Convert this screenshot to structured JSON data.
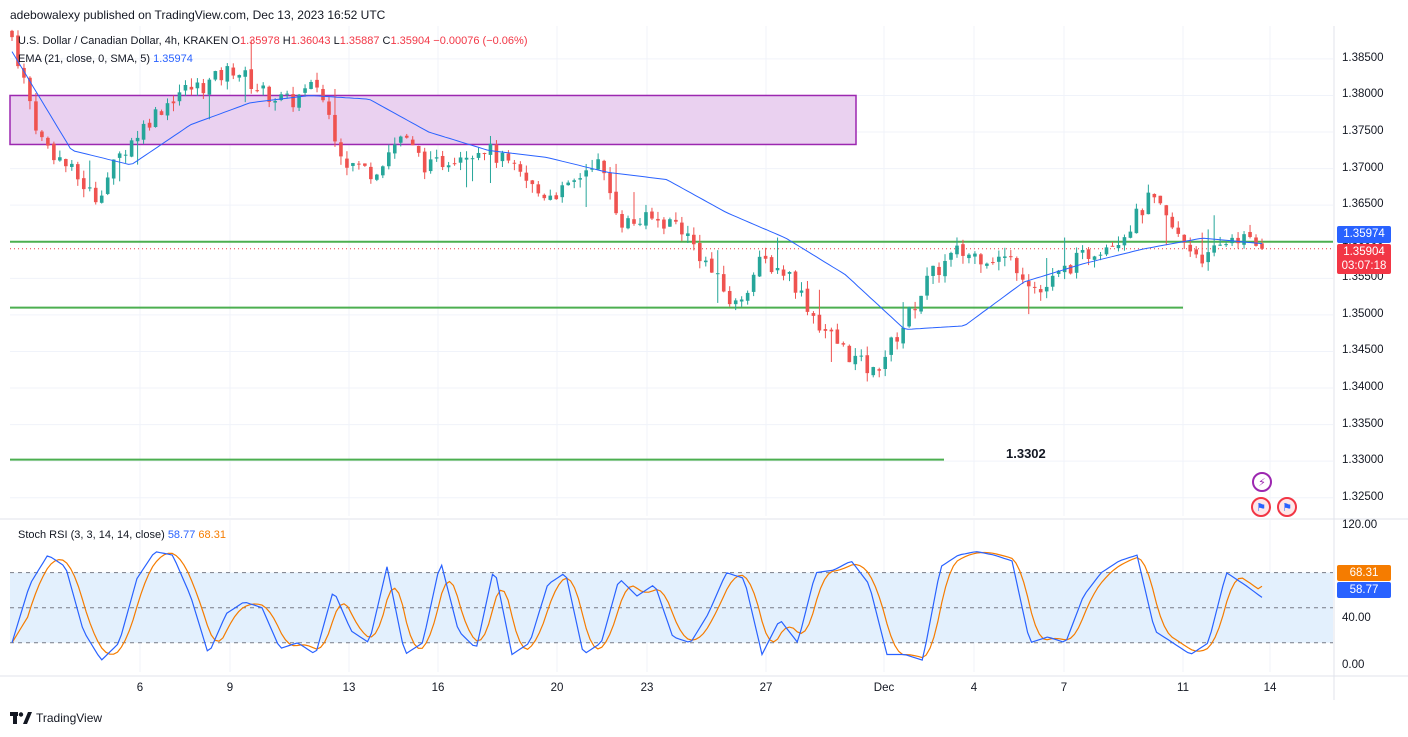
{
  "header": {
    "publisher_text": "adebowalexy published on TradingView.com, Dec 13, 2023 16:52 UTC"
  },
  "legend": {
    "symbol": "U.S. Dollar / Canadian Dollar, 4h, KRAKEN",
    "o_label": "O",
    "o_value": "1.35978",
    "h_label": "H",
    "h_value": "1.36043",
    "l_label": "L",
    "l_value": "1.35887",
    "c_label": "C",
    "c_value": "1.35904",
    "change": "−0.00076 (−0.06%)",
    "ema_label": "EMA (21, close, 0, SMA, 5)",
    "ema_value": "1.35974",
    "stoch_label": "Stoch RSI (3, 3, 14, 14, close)",
    "stoch_k": "58.77",
    "stoch_d": "68.31"
  },
  "price_axis": [
    "1.38500",
    "1.38000",
    "1.37500",
    "1.37000",
    "1.36500",
    "1.36000",
    "1.35500",
    "1.35000",
    "1.34500",
    "1.34000",
    "1.33500",
    "1.33000",
    "1.32500"
  ],
  "stoch_axis": [
    "120.00",
    "40.00",
    "0.00"
  ],
  "time_axis": [
    "6",
    "9",
    "13",
    "16",
    "20",
    "23",
    "27",
    "Dec",
    "4",
    "7",
    "11",
    "14"
  ],
  "tags": {
    "ema_price": "1.35974",
    "last_price": "1.35904",
    "countdown": "03:07:18",
    "stoch_d": "68.31",
    "stoch_k": "58.77"
  },
  "annotation": "1.3302",
  "footer": {
    "brand": "TradingView"
  },
  "colors": {
    "up": "#26a69a",
    "down": "#ef5350",
    "ema": "#2962ff",
    "zone_fill": "#ead1f0",
    "zone_border": "#9c27b0",
    "hline": "#4caf50",
    "stoch_k": "#2962ff",
    "stoch_d": "#f57c00",
    "stoch_band": "#e3f0fd"
  },
  "chart_data": [
    {
      "type": "candlestick",
      "title": "U.S. Dollar / Canadian Dollar, 4h, KRAKEN",
      "timeframe": "4h",
      "x_ticks": [
        "6",
        "9",
        "13",
        "16",
        "20",
        "23",
        "27",
        "Dec",
        "4",
        "7",
        "11",
        "14"
      ],
      "ylim": [
        1.3225,
        1.3895
      ],
      "close_path": [
        {
          "t": "Dec 1 (start)",
          "p": 1.388
        },
        {
          "t": "Dec 3",
          "p": 1.3742
        },
        {
          "t": "Nov 5",
          "p": 1.3702
        },
        {
          "t": "Nov 6",
          "p": 1.366
        },
        {
          "t": "Nov 7",
          "p": 1.3725
        },
        {
          "t": "Nov 8",
          "p": 1.377
        },
        {
          "t": "Nov 9",
          "p": 1.3805
        },
        {
          "t": "Nov 10",
          "p": 1.3815
        },
        {
          "t": "Nov 10b",
          "p": 1.3838
        },
        {
          "t": "Nov 12",
          "p": 1.3805
        },
        {
          "t": "Nov 13",
          "p": 1.379
        },
        {
          "t": "Nov 14",
          "p": 1.3815
        },
        {
          "t": "Nov 14b",
          "p": 1.371
        },
        {
          "t": "Nov 15",
          "p": 1.3695
        },
        {
          "t": "Nov 16",
          "p": 1.3745
        },
        {
          "t": "Nov 17",
          "p": 1.37
        },
        {
          "t": "Nov 19",
          "p": 1.372
        },
        {
          "t": "Nov 20",
          "p": 1.373
        },
        {
          "t": "Nov 21",
          "p": 1.37
        },
        {
          "t": "Nov 22",
          "p": 1.3665
        },
        {
          "t": "Nov 23",
          "p": 1.367
        },
        {
          "t": "Nov 24",
          "p": 1.3715
        },
        {
          "t": "Nov 24b",
          "p": 1.3625
        },
        {
          "t": "Nov 26",
          "p": 1.363
        },
        {
          "t": "Nov 27",
          "p": 1.3625
        },
        {
          "t": "Nov 28",
          "p": 1.357
        },
        {
          "t": "Nov 28b",
          "p": 1.351
        },
        {
          "t": "Nov 29",
          "p": 1.3575
        },
        {
          "t": "Nov 30",
          "p": 1.3555
        },
        {
          "t": "Dec 1",
          "p": 1.349
        },
        {
          "t": "Dec 3",
          "p": 1.345
        },
        {
          "t": "Dec 3b",
          "p": 1.342
        },
        {
          "t": "Dec 4",
          "p": 1.348
        },
        {
          "t": "Dec 5",
          "p": 1.355
        },
        {
          "t": "Dec 5b",
          "p": 1.3585
        },
        {
          "t": "Dec 6",
          "p": 1.358
        },
        {
          "t": "Dec 7",
          "p": 1.3575
        },
        {
          "t": "Dec 7b",
          "p": 1.353
        },
        {
          "t": "Dec 8",
          "p": 1.3565
        },
        {
          "t": "Dec 8b",
          "p": 1.359
        },
        {
          "t": "Dec 10",
          "p": 1.361
        },
        {
          "t": "Dec 10b",
          "p": 1.366
        },
        {
          "t": "Dec 11",
          "p": 1.3605
        },
        {
          "t": "Dec 12",
          "p": 1.3575
        },
        {
          "t": "Dec 12b",
          "p": 1.361
        },
        {
          "t": "Dec 13",
          "p": 1.35904
        }
      ],
      "ema_path": [
        {
          "t": "Dec 1 (start)",
          "v": 1.386
        },
        {
          "t": "Nov 6",
          "v": 1.3725
        },
        {
          "t": "Nov 7",
          "v": 1.3705
        },
        {
          "t": "Nov 9",
          "v": 1.376
        },
        {
          "t": "Nov 10",
          "v": 1.379
        },
        {
          "t": "Nov 13",
          "v": 1.38
        },
        {
          "t": "Nov 14",
          "v": 1.3795
        },
        {
          "t": "Nov 15",
          "v": 1.375
        },
        {
          "t": "Nov 17",
          "v": 1.3725
        },
        {
          "t": "Nov 20",
          "v": 1.3715
        },
        {
          "t": "Nov 22",
          "v": 1.3695
        },
        {
          "t": "Nov 24",
          "v": 1.3685
        },
        {
          "t": "Nov 27",
          "v": 1.364
        },
        {
          "t": "Nov 28",
          "v": 1.3605
        },
        {
          "t": "Nov 30",
          "v": 1.3555
        },
        {
          "t": "Dec 3",
          "v": 1.348
        },
        {
          "t": "Dec 4",
          "v": 1.3485
        },
        {
          "t": "Dec 6",
          "v": 1.3545
        },
        {
          "t": "Dec 8",
          "v": 1.357
        },
        {
          "t": "Dec 10",
          "v": 1.359
        },
        {
          "t": "Dec 11",
          "v": 1.3605
        },
        {
          "t": "Dec 13",
          "v": 1.35974
        }
      ],
      "supply_zone": {
        "price_low": 1.3733,
        "price_high": 1.38,
        "from": "Dec 1 (start)",
        "to": "Nov 29"
      },
      "horizontal_lines": [
        {
          "price": 1.36,
          "label": ""
        },
        {
          "price": 1.351,
          "label": ""
        },
        {
          "price": 1.3302,
          "label": "1.3302"
        }
      ],
      "last_price": 1.35904,
      "ema_last": 1.35974
    },
    {
      "type": "line",
      "title": "Stoch RSI (3, 3, 14, 14, close)",
      "ylim": [
        -5,
        125
      ],
      "bands": [
        20,
        50,
        80
      ],
      "series": [
        {
          "name": "K",
          "last": 58.77
        },
        {
          "name": "D",
          "last": 68.31
        }
      ],
      "k_path": [
        20,
        70,
        95,
        85,
        30,
        5,
        20,
        75,
        98,
        95,
        60,
        10,
        45,
        55,
        50,
        15,
        20,
        10,
        65,
        30,
        20,
        85,
        10,
        20,
        90,
        30,
        15,
        85,
        10,
        20,
        70,
        80,
        10,
        20,
        75,
        60,
        70,
        25,
        20,
        45,
        80,
        75,
        10,
        40,
        20,
        80,
        82,
        90,
        70,
        10,
        10,
        5,
        85,
        95,
        98,
        95,
        90,
        20,
        25,
        20,
        60,
        80,
        90,
        95,
        30,
        20,
        10,
        20,
        80,
        70,
        58.77
      ]
    }
  ]
}
